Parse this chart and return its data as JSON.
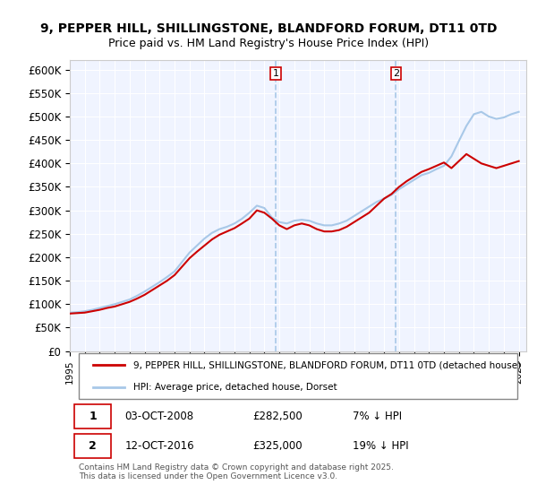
{
  "title": "9, PEPPER HILL, SHILLINGSTONE, BLANDFORD FORUM, DT11 0TD",
  "subtitle": "Price paid vs. HM Land Registry's House Price Index (HPI)",
  "ylabel": "",
  "ylim": [
    0,
    620000
  ],
  "yticks": [
    0,
    50000,
    100000,
    150000,
    200000,
    250000,
    300000,
    350000,
    400000,
    450000,
    500000,
    550000,
    600000
  ],
  "ytick_labels": [
    "£0",
    "£50K",
    "£100K",
    "£150K",
    "£200K",
    "£250K",
    "£300K",
    "£350K",
    "£400K",
    "£450K",
    "£500K",
    "£550K",
    "£600K"
  ],
  "legend1_label": "9, PEPPER HILL, SHILLINGSTONE, BLANDFORD FORUM, DT11 0TD (detached house)",
  "legend2_label": "HPI: Average price, detached house, Dorset",
  "note1_num": "1",
  "note1_date": "03-OCT-2008",
  "note1_price": "£282,500",
  "note1_hpi": "7% ↓ HPI",
  "note2_num": "2",
  "note2_date": "12-OCT-2016",
  "note2_price": "£325,000",
  "note2_hpi": "19% ↓ HPI",
  "footer": "Contains HM Land Registry data © Crown copyright and database right 2025.\nThis data is licensed under the Open Government Licence v3.0.",
  "vline1_x": 2008.75,
  "vline2_x": 2016.79,
  "hpi_color": "#a8c8e8",
  "price_color": "#cc0000",
  "vline_color": "#a8c8e8",
  "bg_color": "#f0f4ff",
  "marker1_label": "1",
  "marker2_label": "2",
  "hpi_years": [
    1995,
    1995.5,
    1996,
    1996.5,
    1997,
    1997.5,
    1998,
    1998.5,
    1999,
    1999.5,
    2000,
    2000.5,
    2001,
    2001.5,
    2002,
    2002.5,
    2003,
    2003.5,
    2004,
    2004.5,
    2005,
    2005.5,
    2006,
    2006.5,
    2007,
    2007.5,
    2008,
    2008.5,
    2009,
    2009.5,
    2010,
    2010.5,
    2011,
    2011.5,
    2012,
    2012.5,
    2013,
    2013.5,
    2014,
    2014.5,
    2015,
    2015.5,
    2016,
    2016.5,
    2017,
    2017.5,
    2018,
    2018.5,
    2019,
    2019.5,
    2020,
    2020.5,
    2021,
    2021.5,
    2022,
    2022.5,
    2023,
    2023.5,
    2024,
    2024.5,
    2025
  ],
  "hpi_values": [
    82000,
    83000,
    85000,
    88000,
    92000,
    96000,
    100000,
    105000,
    110000,
    118000,
    127000,
    137000,
    147000,
    158000,
    170000,
    190000,
    210000,
    225000,
    240000,
    252000,
    260000,
    265000,
    272000,
    282000,
    295000,
    310000,
    305000,
    285000,
    275000,
    272000,
    278000,
    280000,
    278000,
    272000,
    268000,
    268000,
    272000,
    278000,
    288000,
    298000,
    308000,
    318000,
    325000,
    333000,
    345000,
    355000,
    365000,
    375000,
    380000,
    388000,
    395000,
    415000,
    448000,
    480000,
    505000,
    510000,
    500000,
    495000,
    498000,
    505000,
    510000
  ],
  "price_years": [
    1995,
    1995.5,
    1996,
    1996.5,
    1997,
    1997.5,
    1998,
    1998.5,
    1999,
    1999.5,
    2000,
    2000.5,
    2001,
    2001.5,
    2002,
    2002.5,
    2003,
    2003.5,
    2004,
    2004.5,
    2005,
    2005.5,
    2006,
    2006.5,
    2007,
    2007.5,
    2008,
    2008.5,
    2009,
    2009.5,
    2010,
    2010.5,
    2011,
    2011.5,
    2012,
    2012.5,
    2013,
    2013.5,
    2014,
    2014.5,
    2015,
    2015.5,
    2016,
    2016.5,
    2017,
    2017.5,
    2018,
    2018.5,
    2019,
    2019.5,
    2020,
    2020.5,
    2021,
    2021.5,
    2022,
    2022.5,
    2023,
    2023.5,
    2024,
    2024.5,
    2025
  ],
  "price_values": [
    80000,
    81000,
    82000,
    85000,
    88000,
    92000,
    95000,
    100000,
    105000,
    112000,
    120000,
    130000,
    140000,
    150000,
    162000,
    180000,
    198000,
    212000,
    225000,
    238000,
    248000,
    255000,
    262000,
    272000,
    282500,
    300000,
    295000,
    282500,
    268000,
    260000,
    268000,
    272000,
    268000,
    260000,
    255000,
    255000,
    258000,
    265000,
    275000,
    285000,
    295000,
    310000,
    325000,
    335000,
    350000,
    362000,
    372000,
    382000,
    388000,
    395000,
    402000,
    390000,
    405000,
    420000,
    410000,
    400000,
    395000,
    390000,
    395000,
    400000,
    405000
  ],
  "xlim": [
    1995,
    2025.5
  ],
  "xticks": [
    1995,
    1996,
    1997,
    1998,
    1999,
    2000,
    2001,
    2002,
    2003,
    2004,
    2005,
    2006,
    2007,
    2008,
    2009,
    2010,
    2011,
    2012,
    2013,
    2014,
    2015,
    2016,
    2017,
    2018,
    2019,
    2020,
    2021,
    2022,
    2023,
    2024,
    2025
  ]
}
